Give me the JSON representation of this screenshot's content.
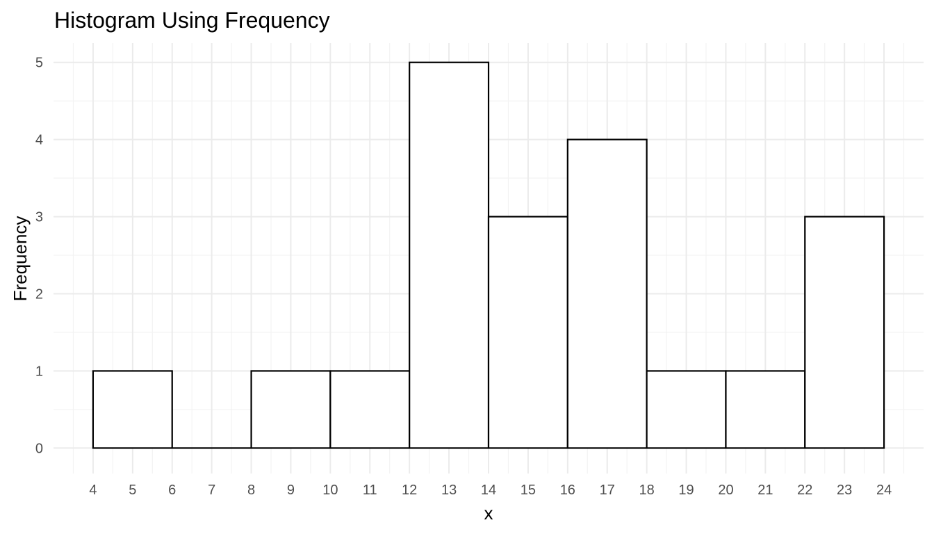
{
  "chart_data": {
    "type": "bar",
    "title": "Histogram Using Frequency",
    "xlabel": "x",
    "ylabel": "Frequency",
    "xlim": [
      3,
      25
    ],
    "ylim": [
      -0.33,
      5.25
    ],
    "x_ticks": [
      4,
      5,
      6,
      7,
      8,
      9,
      10,
      11,
      12,
      13,
      14,
      15,
      16,
      17,
      18,
      19,
      20,
      21,
      22,
      23,
      24
    ],
    "y_ticks": [
      0,
      1,
      2,
      3,
      4,
      5
    ],
    "bins": [
      {
        "start": 4,
        "end": 6,
        "value": 1
      },
      {
        "start": 6,
        "end": 8,
        "value": 0
      },
      {
        "start": 8,
        "end": 10,
        "value": 1
      },
      {
        "start": 10,
        "end": 12,
        "value": 1
      },
      {
        "start": 12,
        "end": 14,
        "value": 5
      },
      {
        "start": 14,
        "end": 16,
        "value": 3
      },
      {
        "start": 16,
        "end": 18,
        "value": 4
      },
      {
        "start": 18,
        "end": 20,
        "value": 1
      },
      {
        "start": 20,
        "end": 22,
        "value": 1
      },
      {
        "start": 22,
        "end": 24,
        "value": 3
      }
    ],
    "fill_color": "#ffffff",
    "outline_color": "#000000",
    "grid": true,
    "legend": "none"
  }
}
